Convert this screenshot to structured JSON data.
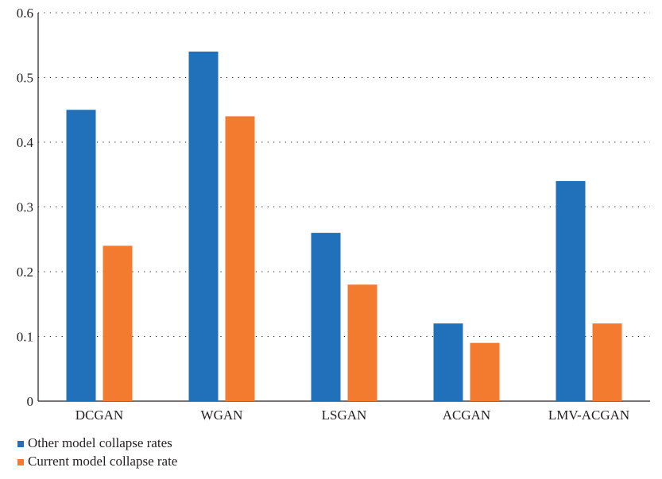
{
  "chart_data": {
    "type": "bar",
    "categories": [
      "DCGAN",
      "WGAN",
      "LSGAN",
      "ACGAN",
      "LMV-ACGAN"
    ],
    "series": [
      {
        "name": "Other model collapse rates",
        "values": [
          0.45,
          0.54,
          0.26,
          0.12,
          0.34
        ],
        "color": "#2070ba"
      },
      {
        "name": "Current model collapse rate",
        "values": [
          0.24,
          0.44,
          0.18,
          0.09,
          0.12
        ],
        "color": "#f27b2f"
      }
    ],
    "title": "",
    "xlabel": "",
    "ylabel": "",
    "ylim": [
      0,
      0.6
    ],
    "yticks": [
      "0",
      "0.1",
      "0.2",
      "0.3",
      "0.4",
      "0.5",
      "0.6"
    ],
    "grid": "horizontal-dotted",
    "legend_position": "bottom-left"
  }
}
